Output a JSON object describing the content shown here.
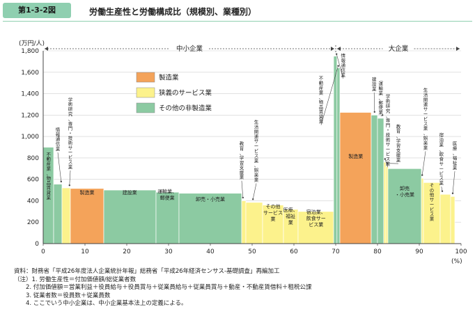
{
  "figure": {
    "number": "第1-3-2図",
    "title": "労働生産性と労働構成比（規模別、業種別）"
  },
  "chart_data": {
    "type": "bar",
    "variant": "marimekko (variable-width bars)",
    "ylabel": "(万円/人)",
    "xunit": "(%)",
    "ylim": [
      0,
      1800
    ],
    "xlim": [
      0,
      100
    ],
    "yticks": [
      "0",
      "200",
      "400",
      "600",
      "800",
      "1,000",
      "1,200",
      "1,400",
      "1,600",
      "1,800"
    ],
    "xticks": [
      "0",
      "10",
      "20",
      "30",
      "40",
      "50",
      "60",
      "70",
      "80",
      "90",
      "100"
    ],
    "groups": [
      {
        "label": "中小企業",
        "x_start": 0,
        "x_end": 70
      },
      {
        "label": "大企業",
        "x_start": 70,
        "x_end": 100
      }
    ],
    "legend": [
      {
        "key": "manufacturing",
        "label": "製造業",
        "color": "#f4a35a"
      },
      {
        "key": "narrow_service",
        "label": "狭義のサービス業",
        "color": "#fcf28c"
      },
      {
        "key": "other",
        "label": "その他の非製造業",
        "color": "#8ccaa2"
      }
    ],
    "bars": [
      {
        "label": "不動産業、物品賃貸業",
        "x0": 0.0,
        "x1": 2.5,
        "value": 900,
        "category": "other"
      },
      {
        "label": "情報通信業",
        "x0": 2.5,
        "x1": 4.5,
        "value": 555,
        "category": "other"
      },
      {
        "label": "学術研究、専門・技術サービス業",
        "x0": 4.5,
        "x1": 6.5,
        "value": 520,
        "category": "narrow_service"
      },
      {
        "label": "製造業",
        "x0": 6.5,
        "x1": 14.5,
        "value": 515,
        "category": "manufacturing"
      },
      {
        "label": "建設業",
        "x0": 14.5,
        "x1": 27.0,
        "value": 500,
        "category": "other"
      },
      {
        "label": "運輸業、郵便業",
        "x0": 27.0,
        "x1": 32.5,
        "value": 480,
        "category": "other"
      },
      {
        "label": "卸売・小売業",
        "x0": 32.5,
        "x1": 47.5,
        "value": 470,
        "category": "other"
      },
      {
        "label": "教育、学習支援業",
        "x0": 47.5,
        "x1": 48.5,
        "value": 400,
        "category": "narrow_service"
      },
      {
        "label": "生活関連サービス業、娯楽業",
        "x0": 48.5,
        "x1": 52.5,
        "value": 385,
        "category": "narrow_service"
      },
      {
        "label": "その他サービス業",
        "x0": 52.5,
        "x1": 57.5,
        "value": 360,
        "category": "narrow_service"
      },
      {
        "label": "医療、福祉業",
        "x0": 57.5,
        "x1": 61.0,
        "value": 320,
        "category": "narrow_service"
      },
      {
        "label": "宿泊業、飲食サービス業",
        "x0": 61.0,
        "x1": 69.5,
        "value": 300,
        "category": "narrow_service"
      },
      {
        "label": "情報通信業",
        "x0": 69.5,
        "x1": 70.3,
        "value": 1750,
        "category": "other"
      },
      {
        "label": "不動産業、物品賃貸業",
        "x0": 70.3,
        "x1": 71.0,
        "value": 1640,
        "category": "other"
      },
      {
        "label": "製造業",
        "x0": 71.0,
        "x1": 78.5,
        "value": 1225,
        "category": "manufacturing"
      },
      {
        "label": "建設業",
        "x0": 78.5,
        "x1": 80.0,
        "value": 1200,
        "category": "other"
      },
      {
        "label": "運輸業、郵便業",
        "x0": 80.0,
        "x1": 81.5,
        "value": 1170,
        "category": "other"
      },
      {
        "label": "学術研究、専門・技術サービス業",
        "x0": 81.5,
        "x1": 82.0,
        "value": 760,
        "category": "narrow_service"
      },
      {
        "label": "教育、学習支援業",
        "x0": 82.0,
        "x1": 82.5,
        "value": 720,
        "category": "narrow_service"
      },
      {
        "label": "卸売・小売業",
        "x0": 82.5,
        "x1": 90.5,
        "value": 700,
        "category": "other"
      },
      {
        "label": "生活関連サービス業、娯楽業",
        "x0": 90.5,
        "x1": 91.0,
        "value": 610,
        "category": "narrow_service"
      },
      {
        "label": "その他サービス業",
        "x0": 91.0,
        "x1": 95.0,
        "value": 570,
        "category": "narrow_service"
      },
      {
        "label": "宿泊業、飲食サービス業",
        "x0": 95.0,
        "x1": 97.5,
        "value": 460,
        "category": "narrow_service"
      },
      {
        "label": "医療、福祉業",
        "x0": 97.5,
        "x1": 98.5,
        "value": 440,
        "category": "narrow_service"
      }
    ],
    "labels_inside": [
      {
        "text": "不動産業、物品賃貸業",
        "x": 1.3,
        "y": 820,
        "vertical": true
      },
      {
        "text": "製造業",
        "x": 10.5,
        "y": 460,
        "vertical": false
      },
      {
        "text": "建設業",
        "x": 20.7,
        "y": 460,
        "vertical": false
      },
      {
        "text": "運輸業、郵便業",
        "x": 29.7,
        "y": 470,
        "vertical": false,
        "lines": [
          "運輸業、",
          "郵便業"
        ]
      },
      {
        "text": "卸売・小売業",
        "x": 40.0,
        "y": 400,
        "vertical": false
      },
      {
        "text": "その他サービス業",
        "x": 55.0,
        "y": 330,
        "vertical": false,
        "lines": [
          "その他",
          "サービス",
          "業"
        ]
      },
      {
        "text": "医療、福祉業",
        "x": 59.2,
        "y": 300,
        "vertical": false,
        "lines": [
          "医療、",
          "福祉",
          "業"
        ]
      },
      {
        "text": "宿泊業、飲食サービス業",
        "x": 65.3,
        "y": 280,
        "vertical": false,
        "lines": [
          "宿泊業、",
          "飲食サー",
          "ビス業"
        ]
      },
      {
        "text": "製造業",
        "x": 74.8,
        "y": 800,
        "vertical": false
      },
      {
        "text": "卸売・小売業",
        "x": 86.5,
        "y": 500,
        "vertical": false,
        "lines": [
          "卸売",
          "・小売業"
        ]
      },
      {
        "text": "その他サービス業",
        "x": 93.0,
        "y": 530,
        "vertical": true
      }
    ],
    "labels_outside": [
      {
        "text": "情報通信業",
        "x": 3.5,
        "y": 1050,
        "ax": 4.3,
        "ay": 560
      },
      {
        "text": "学術研究、専門・技術サービス業",
        "x": 6.5,
        "y": 1330,
        "ax": 6.3,
        "ay": 525
      },
      {
        "text": "教育、学習支援業",
        "x": 47.5,
        "y": 920,
        "ax": 47.8,
        "ay": 410
      },
      {
        "text": "生活関連サービス業、娯楽業",
        "x": 51.0,
        "y": 1120,
        "ax": 50.2,
        "ay": 395
      },
      {
        "text": "情報通信業",
        "x": 71.8,
        "y": 1740,
        "ax": 70.2,
        "ay": 1750
      },
      {
        "text": "不動産業、物品賃貸業",
        "x": 66.5,
        "y": 1530,
        "ax": 70.6,
        "ay": 1640
      },
      {
        "text": "建設業",
        "x": 79.2,
        "y": 1520,
        "ax": 79.3,
        "ay": 1210
      },
      {
        "text": "運輸業、郵便業",
        "x": 80.8,
        "y": 1480,
        "ax": 81.2,
        "ay": 1180
      },
      {
        "text": "学術研究、専門・技術サービス業",
        "x": 82.5,
        "y": 1360,
        "ax": 81.8,
        "ay": 770
      },
      {
        "text": "教育、学習支援業",
        "x": 85.0,
        "y": 1080,
        "ax": 82.3,
        "ay": 730
      },
      {
        "text": "生活関連サービス業、娯楽業",
        "x": 91.5,
        "y": 1420,
        "ax": 90.7,
        "ay": 620
      },
      {
        "text": "宿泊業、飲食サービス業",
        "x": 95.3,
        "y": 1000,
        "ax": 95.5,
        "ay": 470
      },
      {
        "text": "医療、福祉業",
        "x": 98.5,
        "y": 920,
        "ax": 98.0,
        "ay": 450
      }
    ]
  },
  "notes": [
    "資料：財務省「平成26年度法人企業統計年報」総務省「平成26年経済センサス-基礎調査」再編加工",
    "（注）1. 労働生産性＝付加価値額/総従業者数",
    "　　2. 付加価値額＝営業利益＋役員給与＋役員賞与＋従業員給与＋従業員賞与＋動産・不動産賃借料＋租税公課",
    "　　3. 従業者数＝役員数＋従業員数",
    "　　4. ここでいう中小企業は、中小企業基本法上の定義による。"
  ]
}
